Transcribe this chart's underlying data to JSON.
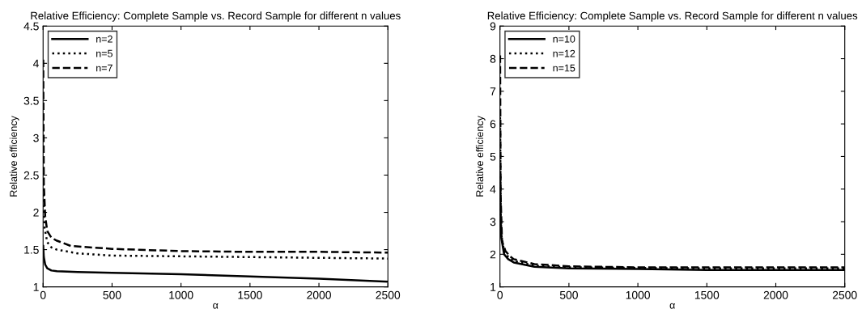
{
  "chart_data": [
    {
      "type": "line",
      "title": "Relative Efficiency: Complete Sample vs. Record Sample for different n values",
      "xlabel": "α",
      "ylabel": "Relative efficiency",
      "xlim": [
        0,
        2500
      ],
      "xticks": [
        0,
        500,
        1000,
        1500,
        2000,
        2500
      ],
      "ylim": [
        1,
        4.5
      ],
      "yticks": [
        1,
        1.5,
        2,
        2.5,
        3,
        3.5,
        4,
        4.5
      ],
      "grid": false,
      "legend": "top left",
      "series": [
        {
          "name": "n=2",
          "color": "#000000",
          "line_style": "solid",
          "x": [
            1,
            5,
            15,
            30,
            60,
            100,
            250,
            500,
            1000,
            1500,
            2000,
            2500
          ],
          "values": [
            1.55,
            1.4,
            1.3,
            1.25,
            1.22,
            1.21,
            1.2,
            1.19,
            1.17,
            1.14,
            1.11,
            1.07
          ]
        },
        {
          "name": "n=5",
          "color": "#000000",
          "line_style": "dotted",
          "x": [
            1,
            5,
            10,
            30,
            60,
            100,
            250,
            500,
            1000,
            1500,
            2000,
            2500
          ],
          "values": [
            2.6,
            2.0,
            1.8,
            1.6,
            1.53,
            1.5,
            1.45,
            1.42,
            1.41,
            1.4,
            1.39,
            1.38
          ]
        },
        {
          "name": "n=7",
          "color": "#000000",
          "line_style": "dashed",
          "x": [
            1,
            5,
            15,
            30,
            60,
            100,
            200,
            500,
            1000,
            1500,
            2000,
            2500
          ],
          "values": [
            4.05,
            2.4,
            1.95,
            1.75,
            1.66,
            1.62,
            1.55,
            1.51,
            1.48,
            1.47,
            1.47,
            1.46
          ]
        }
      ]
    },
    {
      "type": "line",
      "title": "Relative Efficiency: Complete Sample vs. Record Sample for different n values",
      "xlabel": "α",
      "ylabel": "Relative efficiency",
      "xlim": [
        0,
        2500
      ],
      "xticks": [
        0,
        500,
        1000,
        1500,
        2000,
        2500
      ],
      "ylim": [
        1,
        9
      ],
      "yticks": [
        1,
        2,
        3,
        4,
        5,
        6,
        7,
        8,
        9
      ],
      "grid": false,
      "legend": "top left",
      "series": [
        {
          "name": "n=10",
          "color": "#000000",
          "line_style": "solid",
          "x": [
            1,
            5,
            10,
            30,
            60,
            100,
            250,
            500,
            1000,
            1500,
            2000,
            2500
          ],
          "values": [
            4.5,
            3.0,
            2.5,
            2.0,
            1.85,
            1.75,
            1.62,
            1.57,
            1.55,
            1.52,
            1.52,
            1.52
          ]
        },
        {
          "name": "n=12",
          "color": "#000000",
          "line_style": "dotted",
          "x": [
            1,
            5,
            10,
            30,
            60,
            100,
            250,
            500,
            1000,
            1500,
            2000,
            2500
          ],
          "values": [
            6.2,
            3.4,
            2.6,
            2.1,
            1.92,
            1.8,
            1.65,
            1.6,
            1.58,
            1.57,
            1.57,
            1.57
          ]
        },
        {
          "name": "n=15",
          "color": "#000000",
          "line_style": "dashed",
          "x": [
            1,
            5,
            15,
            40,
            70,
            100,
            250,
            500,
            1000,
            1500,
            2000,
            2500
          ],
          "values": [
            8.1,
            3.8,
            2.4,
            2.1,
            1.95,
            1.85,
            1.7,
            1.63,
            1.6,
            1.6,
            1.6,
            1.6
          ]
        }
      ]
    }
  ]
}
